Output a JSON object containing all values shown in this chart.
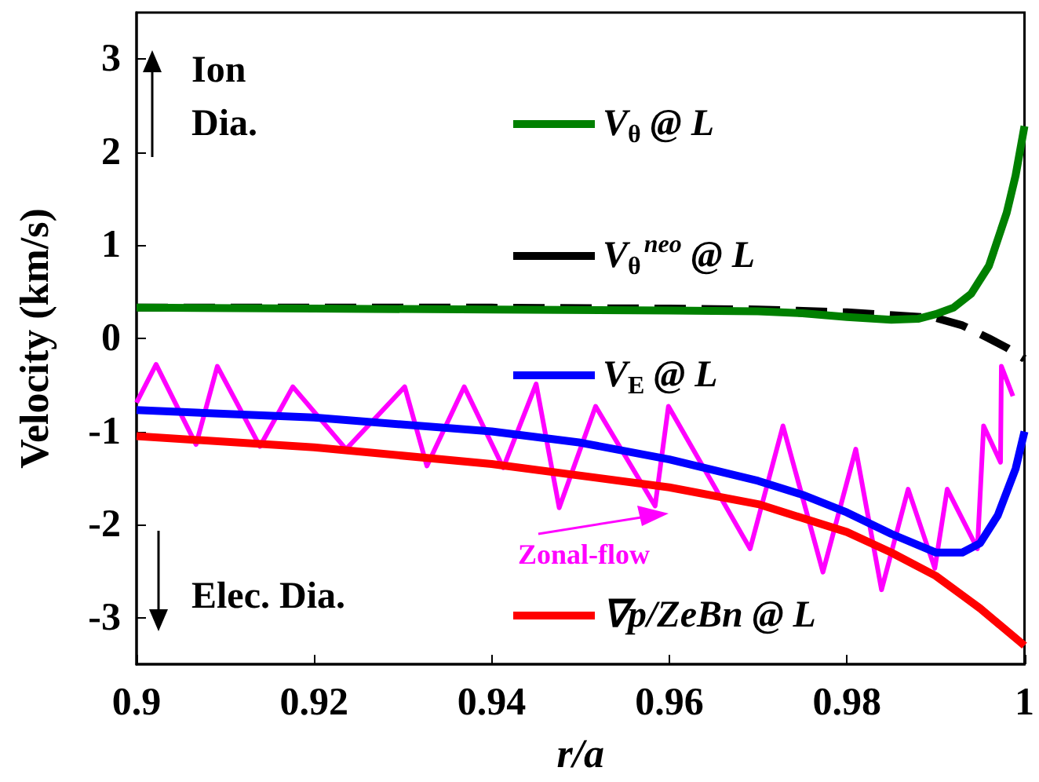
{
  "chart_data": {
    "type": "line",
    "xlabel": "r/a",
    "ylabel": "Velocity (km/s)",
    "xlim": [
      0.9,
      1
    ],
    "xticks": [
      0.9,
      0.92,
      0.94,
      0.96,
      0.98,
      1
    ],
    "ylim": [
      -3.5,
      3.5
    ],
    "yticks": [
      -3,
      -2,
      -1,
      0,
      1,
      2,
      3
    ],
    "grid": false,
    "legend": "right",
    "marker": "none",
    "annotations": [
      "Ion Dia.",
      "Elec. Dia."
    ],
    "series": [
      {
        "name": "V$_{θ}$ @ L",
        "color": "#008000",
        "x": [
          0.9,
          0.92,
          0.94,
          0.96,
          0.97,
          0.975,
          0.98,
          0.985,
          0.988,
          0.99,
          0.992,
          0.994,
          0.996,
          0.998,
          0.999,
          1.0
        ],
        "values": [
          0.33,
          0.32,
          0.31,
          0.3,
          0.29,
          0.27,
          0.23,
          0.2,
          0.21,
          0.26,
          0.33,
          0.48,
          0.78,
          1.35,
          1.75,
          2.28
        ]
      },
      {
        "name": "V$_{θ}$$^{neo}$ @ L",
        "color": "#000000",
        "line_style": "dashed",
        "x": [
          0.9,
          0.92,
          0.94,
          0.96,
          0.97,
          0.98,
          0.99,
          0.993,
          0.996,
          0.998,
          1.0
        ],
        "values": [
          0.33,
          0.33,
          0.33,
          0.32,
          0.31,
          0.28,
          0.22,
          0.14,
          0.0,
          -0.1,
          -0.22
        ]
      },
      {
        "name": "V$_{E}$ @ L",
        "color": "#0000ff",
        "x": [
          0.9,
          0.92,
          0.94,
          0.95,
          0.96,
          0.97,
          0.975,
          0.98,
          0.985,
          0.99,
          0.993,
          0.995,
          0.997,
          0.999,
          1.0
        ],
        "values": [
          -0.77,
          -0.85,
          -1.0,
          -1.12,
          -1.3,
          -1.53,
          -1.68,
          -1.87,
          -2.1,
          -2.3,
          -2.3,
          -2.2,
          -1.9,
          -1.4,
          -1.0
        ]
      },
      {
        "name": "∇p/ZeBn @ L",
        "color": "#ff0000",
        "x": [
          0.9,
          0.92,
          0.94,
          0.96,
          0.97,
          0.98,
          0.985,
          0.99,
          0.995,
          1.0
        ],
        "values": [
          -1.05,
          -1.17,
          -1.35,
          -1.6,
          -1.78,
          -2.08,
          -2.3,
          -2.55,
          -2.9,
          -3.3
        ]
      },
      {
        "name": "Zonal-flow",
        "color": "#ff00ff",
        "x": [
          0.9,
          0.9022,
          0.9067,
          0.9091,
          0.9139,
          0.9176,
          0.9236,
          0.9302,
          0.9327,
          0.9369,
          0.9413,
          0.945,
          0.9476,
          0.9517,
          0.9584,
          0.9599,
          0.9691,
          0.9728,
          0.9773,
          0.981,
          0.9839,
          0.9869,
          0.9899,
          0.9913,
          0.9947,
          0.9954,
          0.9973,
          0.9974,
          0.9987
        ],
        "values": [
          -0.69,
          -0.28,
          -1.14,
          -0.3,
          -1.16,
          -0.52,
          -1.19,
          -0.52,
          -1.37,
          -0.52,
          -1.39,
          -0.49,
          -1.82,
          -0.73,
          -1.8,
          -0.73,
          -2.26,
          -0.94,
          -2.51,
          -1.19,
          -2.7,
          -1.62,
          -2.47,
          -1.62,
          -2.26,
          -0.94,
          -1.33,
          -0.3,
          -0.62
        ]
      }
    ]
  }
}
